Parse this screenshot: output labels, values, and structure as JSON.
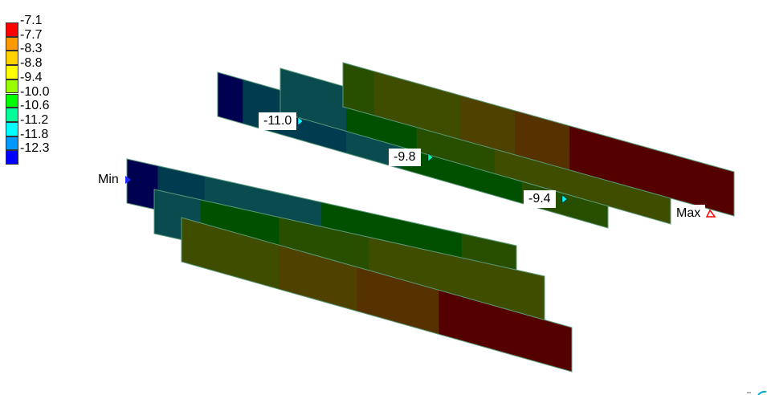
{
  "legend": {
    "entries": [
      {
        "label": "-7.1",
        "color": "#ff0000"
      },
      {
        "label": "-7.7",
        "color": "#ff9900"
      },
      {
        "label": "-8.3",
        "color": "#ffd200"
      },
      {
        "label": "-8.8",
        "color": "#ffff00"
      },
      {
        "label": "-9.4",
        "color": "#99ff00"
      },
      {
        "label": "-10.0",
        "color": "#00ff00"
      },
      {
        "label": "-10.6",
        "color": "#00ff99"
      },
      {
        "label": "-11.2",
        "color": "#00ffff"
      },
      {
        "label": "-11.8",
        "color": "#0099ff"
      },
      {
        "label": "-12.3",
        "color": "#0000ff"
      }
    ]
  },
  "markers": {
    "min_label": "Min",
    "max_label": "Max",
    "probe_1": "-11.0",
    "probe_2": "-9.8",
    "probe_3": "-9.4"
  },
  "colors": {
    "navy": "#000050",
    "dark_teal": "#003c50",
    "teal": "#0a4b50",
    "dark_green": "#005000",
    "olive_green": "#284f00",
    "olive": "#3e4d00",
    "brown_olive": "#4f4200",
    "brown": "#553200",
    "dark_red": "#550000"
  }
}
